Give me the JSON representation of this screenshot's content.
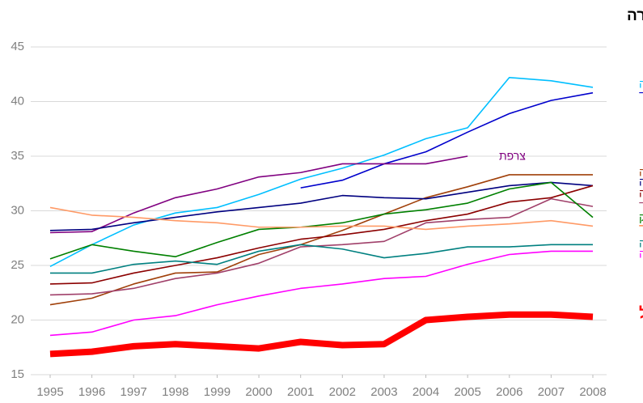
{
  "chart_data": {
    "type": "line",
    "title": "ד. מסחר קמעוני וסיטוני, תיקונים, שירותי אירוח ואוכל, תחבורה",
    "x": [
      1995,
      1996,
      1997,
      1998,
      1999,
      2000,
      2001,
      2002,
      2003,
      2004,
      2005,
      2006,
      2007,
      2008
    ],
    "xlim": [
      1995,
      2008
    ],
    "xticks": [
      1995,
      1996,
      1997,
      1998,
      1999,
      2000,
      2001,
      2002,
      2003,
      2004,
      2005,
      2006,
      2007,
      2008
    ],
    "ylim": [
      15,
      45
    ],
    "yticks": [
      15,
      20,
      25,
      30,
      35,
      40,
      45
    ],
    "grid": true,
    "series": [
      {
        "name": "נורווגיה",
        "color": "#00bfff",
        "values": [
          24.9,
          26.9,
          28.7,
          29.8,
          30.3,
          31.5,
          32.9,
          33.9,
          35.1,
          36.6,
          37.6,
          42.2,
          41.9,
          41.3
        ]
      },
      {
        "name": "הולנד",
        "color": "#0000cc",
        "values": [
          null,
          null,
          null,
          null,
          null,
          null,
          32.1,
          32.8,
          34.3,
          35.4,
          37.2,
          38.9,
          40.1,
          40.8
        ]
      },
      {
        "name": "צרפת",
        "color": "#800080",
        "values": [
          28.0,
          28.1,
          29.8,
          31.2,
          32.0,
          33.1,
          33.5,
          34.3,
          34.3,
          34.3,
          35.0,
          null,
          null,
          null
        ]
      },
      {
        "name": "שוודיה",
        "color": "#a0400a",
        "values": [
          21.4,
          22.0,
          23.3,
          24.3,
          24.4,
          26.0,
          26.9,
          28.2,
          29.7,
          31.2,
          32.2,
          33.3,
          33.3,
          33.3
        ]
      },
      {
        "name": "אוסטריה",
        "color": "#000080",
        "values": [
          28.2,
          28.3,
          28.9,
          29.4,
          29.9,
          30.3,
          30.7,
          31.4,
          31.2,
          31.1,
          31.7,
          32.3,
          32.6,
          32.3
        ]
      },
      {
        "name": "גרמניה",
        "color": "#8b0000",
        "values": [
          23.3,
          23.4,
          24.3,
          25.0,
          25.7,
          26.6,
          27.4,
          27.8,
          28.3,
          29.1,
          29.7,
          30.8,
          31.2,
          32.3
        ]
      },
      {
        "name": "פינלנד",
        "color": "#a0406a",
        "values": [
          22.3,
          22.4,
          22.9,
          23.8,
          24.3,
          25.2,
          26.7,
          26.9,
          27.2,
          28.9,
          29.2,
          29.4,
          31.1,
          30.4
        ]
      },
      {
        "name": "דנמרק",
        "color": "#008000",
        "values": [
          25.6,
          26.9,
          26.3,
          25.8,
          27.1,
          28.3,
          28.5,
          28.9,
          29.7,
          30.1,
          30.7,
          32.0,
          32.6,
          29.4
        ]
      },
      {
        "name": "ספרד",
        "color": "#ff9a66",
        "values": [
          30.3,
          29.6,
          29.4,
          29.1,
          28.9,
          28.5,
          28.5,
          28.6,
          28.6,
          28.3,
          28.6,
          28.8,
          29.1,
          28.6
        ]
      },
      {
        "name": "איטליה",
        "color": "#008080",
        "values": [
          24.3,
          24.3,
          25.1,
          25.4,
          25.1,
          26.3,
          26.9,
          26.5,
          25.7,
          26.1,
          26.7,
          26.7,
          26.9,
          26.9
        ]
      },
      {
        "name": "קנדה",
        "color": "#ff00ff",
        "values": [
          18.6,
          18.9,
          20.0,
          20.4,
          21.4,
          22.2,
          22.9,
          23.3,
          23.8,
          24.0,
          25.1,
          26.0,
          26.3,
          26.3
        ]
      },
      {
        "name": "ישראל",
        "color": "#ff0000",
        "values": [
          16.9,
          17.1,
          17.6,
          17.8,
          17.6,
          17.4,
          18.0,
          17.7,
          17.8,
          20.0,
          20.3,
          20.5,
          20.5,
          20.3
        ]
      }
    ]
  }
}
